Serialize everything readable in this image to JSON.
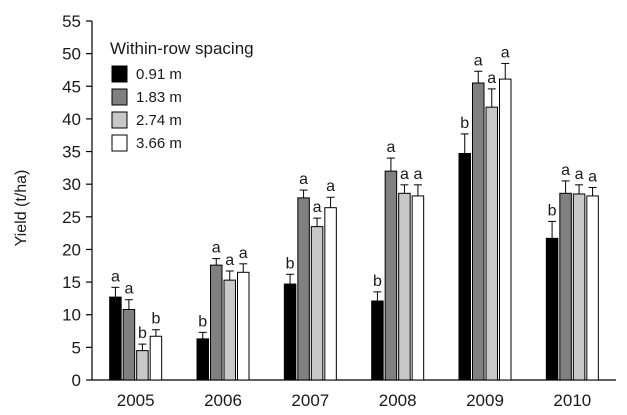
{
  "chart_data": {
    "type": "bar",
    "title": "",
    "xlabel": "",
    "ylabel": "Yield (t/ha)",
    "ylim": [
      0,
      55
    ],
    "yticks": [
      0,
      5,
      10,
      15,
      20,
      25,
      30,
      35,
      40,
      45,
      50,
      55
    ],
    "categories": [
      "2005",
      "2006",
      "2007",
      "2008",
      "2009",
      "2010"
    ],
    "legend": {
      "title": "Within-row spacing",
      "position": "top-left"
    },
    "series": [
      {
        "name": "0.91 m",
        "color": "#000000",
        "values": [
          12.7,
          6.3,
          14.7,
          12.1,
          34.7,
          21.7
        ],
        "errors": [
          1.5,
          1.0,
          1.5,
          1.4,
          3.0,
          2.6
        ],
        "letters": [
          "a",
          "b",
          "b",
          "b",
          "b",
          "b"
        ]
      },
      {
        "name": "1.83 m",
        "color": "#808080",
        "values": [
          10.8,
          17.6,
          27.9,
          32.0,
          45.5,
          28.6
        ],
        "errors": [
          1.5,
          1.0,
          1.2,
          2.0,
          1.8,
          1.9
        ],
        "letters": [
          "a",
          "a",
          "a",
          "a",
          "a",
          "a"
        ]
      },
      {
        "name": "2.74 m",
        "color": "#c8c8c8",
        "values": [
          4.5,
          15.3,
          23.5,
          28.6,
          41.8,
          28.5
        ],
        "errors": [
          1.0,
          1.4,
          1.3,
          1.3,
          2.8,
          1.4
        ],
        "letters": [
          "b",
          "a",
          "a",
          "a",
          "a",
          "a"
        ]
      },
      {
        "name": "3.66 m",
        "color": "#ffffff",
        "values": [
          6.7,
          16.5,
          26.4,
          28.2,
          46.1,
          28.2
        ],
        "errors": [
          1.0,
          1.3,
          1.6,
          1.7,
          2.4,
          1.3
        ],
        "letters": [
          "b",
          "a",
          "a",
          "a",
          "a",
          "a"
        ]
      }
    ]
  }
}
